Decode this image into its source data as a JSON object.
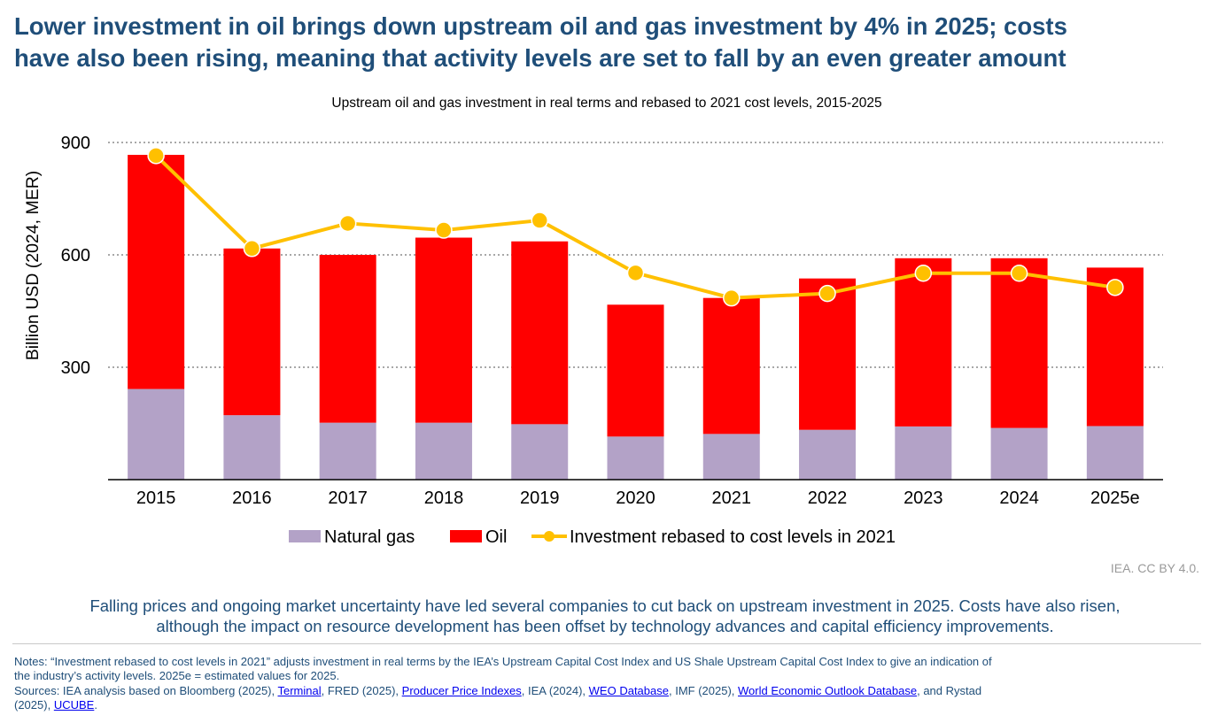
{
  "header": {
    "title_line1": "Lower investment in oil brings down upstream oil and gas investment by 4% in 2025; costs",
    "title_line2": "have also been rising, meaning that activity levels are set to fall by an even greater amount"
  },
  "chart_data": {
    "type": "bar",
    "stacked": true,
    "subtitle": "Upstream oil and gas investment in real terms and rebased to 2021 cost levels, 2015-2025",
    "ylabel": "Billion USD (2024, MER)",
    "xlabel": "",
    "ylim": [
      0,
      900
    ],
    "yticks": [
      300,
      600,
      900
    ],
    "grid": "horizontal dotted",
    "legend_position": "bottom",
    "categories": [
      "2015",
      "2016",
      "2017",
      "2018",
      "2019",
      "2020",
      "2021",
      "2022",
      "2023",
      "2024",
      "2025e"
    ],
    "series": [
      {
        "name": "Natural gas",
        "kind": "bar",
        "color": "#b3a2c7",
        "values": [
          242,
          172,
          152,
          152,
          148,
          115,
          122,
          133,
          142,
          138,
          143
        ]
      },
      {
        "name": "Oil",
        "kind": "bar",
        "color": "#ff0000",
        "values": [
          625,
          445,
          448,
          494,
          488,
          352,
          363,
          404,
          449,
          453,
          423
        ]
      },
      {
        "name": "Investment rebased to cost levels in 2021",
        "kind": "line",
        "color": "#ffc000",
        "values": [
          865,
          617,
          684,
          666,
          692,
          552,
          485,
          497,
          551,
          551,
          513
        ]
      }
    ]
  },
  "footer": {
    "credit": "IEA. CC BY 4.0.",
    "summary_line1": "Falling prices and ongoing market uncertainty have led several companies to cut back on upstream investment in 2025. Costs have also risen,",
    "summary_line2": "although the impact on resource development has been offset by technology advances and capital efficiency improvements.",
    "notes_line1": "Notes: “Investment rebased to cost levels in 2021” adjusts investment in real terms by the IEA’s Upstream Capital Cost Index and US Shale Upstream Capital Cost Index to give an indication of",
    "notes_line2": "the industry’s activity levels. 2025e = estimated values for 2025.",
    "sources_prefix": "Sources: IEA analysis based on Bloomberg (2025), ",
    "link_terminal": "Terminal",
    "sources_mid1": ", FRED (2025), ",
    "link_ppi": "Producer Price Indexes",
    "sources_mid2": ", IEA (2024), ",
    "link_weo": "WEO Database",
    "sources_mid3": ", IMF (2025), ",
    "link_imf": "World Economic Outlook Database",
    "sources_mid4": ", and Rystad",
    "sources_line2_prefix": "(2025), ",
    "link_ucube": "UCUBE",
    "sources_end": "."
  }
}
